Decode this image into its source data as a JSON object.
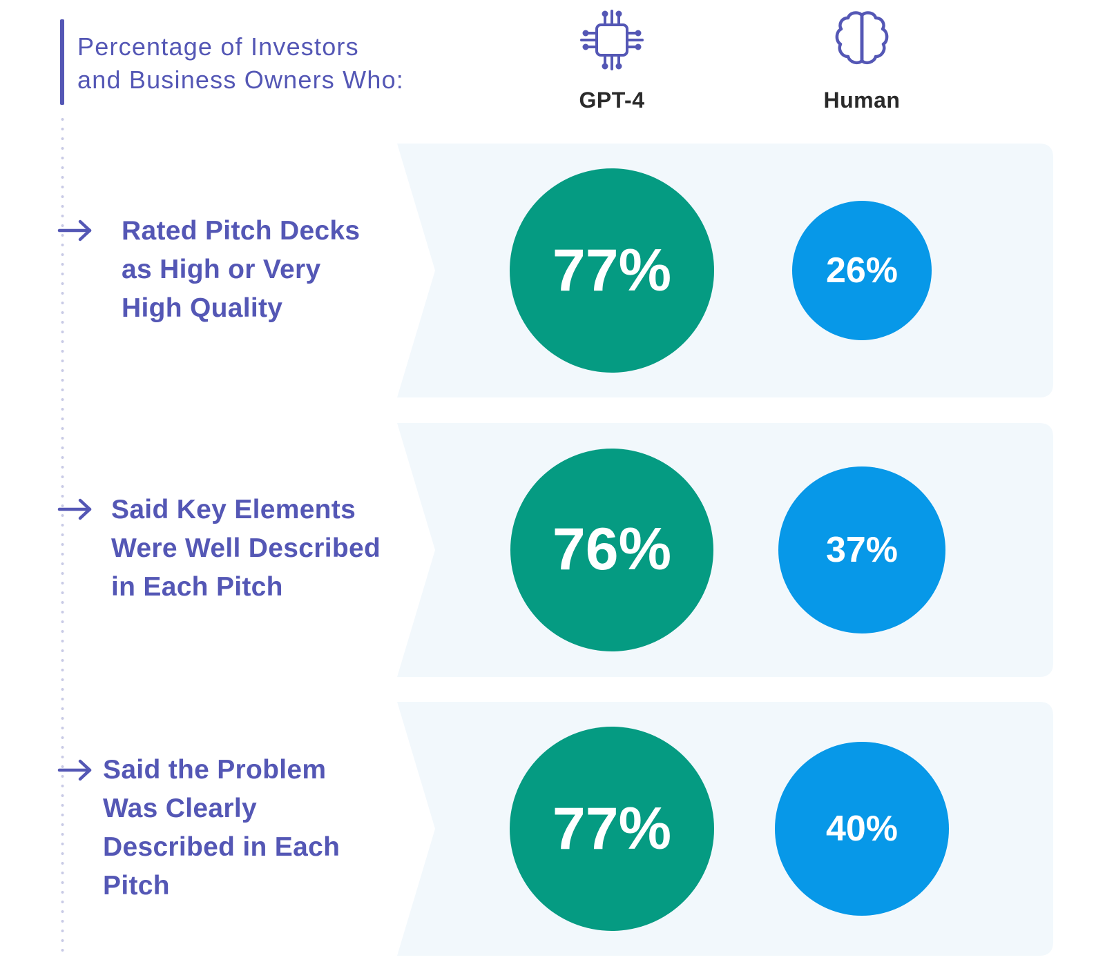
{
  "header": {
    "title_lines": [
      "Percentage of Investors",
      "and Business Owners Who:"
    ]
  },
  "legend_icons": {
    "gpt": "cpu-chip-icon",
    "human": "brain-icon",
    "row_marker": "arrow-right-icon"
  },
  "colors": {
    "accent": "#5457b5",
    "gpt": "#059b82",
    "human": "#0798e8",
    "panel": "#f2f8fc"
  },
  "chart_data": {
    "type": "bubble",
    "categories": [
      "Rated Pitch Decks as High or Very High Quality",
      "Said Key Elements Were Well Described in Each Pitch",
      "Said the Problem Was Clearly Described in Each Pitch"
    ],
    "series": [
      {
        "name": "GPT-4",
        "values": [
          77,
          76,
          77
        ],
        "labels": [
          "77%",
          "76%",
          "77%"
        ]
      },
      {
        "name": "Human",
        "values": [
          26,
          37,
          40
        ],
        "labels": [
          "26%",
          "37%",
          "40%"
        ]
      }
    ],
    "title": "",
    "unit": "%"
  },
  "rows": [
    {
      "label_lines": [
        "Rated Pitch Decks",
        "as High or Very",
        "High Quality"
      ]
    },
    {
      "label_lines": [
        "Said Key Elements",
        "Were Well Described",
        "in Each Pitch"
      ]
    },
    {
      "label_lines": [
        "Said the Problem",
        "Was Clearly",
        "Described in Each",
        "Pitch"
      ]
    }
  ]
}
